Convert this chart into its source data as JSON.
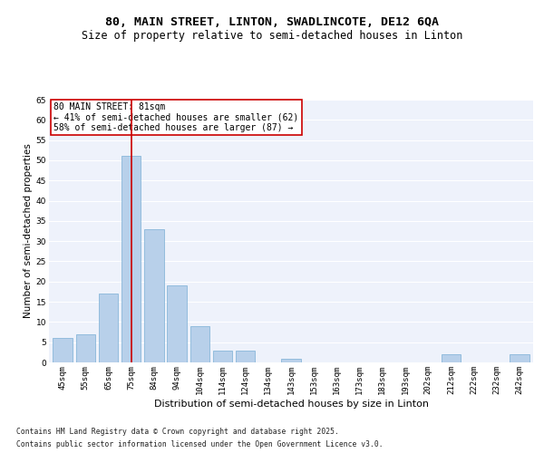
{
  "title1": "80, MAIN STREET, LINTON, SWADLINCOTE, DE12 6QA",
  "title2": "Size of property relative to semi-detached houses in Linton",
  "xlabel": "Distribution of semi-detached houses by size in Linton",
  "ylabel": "Number of semi-detached properties",
  "categories": [
    "45sqm",
    "55sqm",
    "65sqm",
    "75sqm",
    "84sqm",
    "94sqm",
    "104sqm",
    "114sqm",
    "124sqm",
    "134sqm",
    "143sqm",
    "153sqm",
    "163sqm",
    "173sqm",
    "183sqm",
    "193sqm",
    "202sqm",
    "212sqm",
    "222sqm",
    "232sqm",
    "242sqm"
  ],
  "values": [
    6,
    7,
    17,
    51,
    33,
    19,
    9,
    3,
    3,
    0,
    1,
    0,
    0,
    0,
    0,
    0,
    0,
    2,
    0,
    0,
    2
  ],
  "bar_color": "#b8d0ea",
  "bar_edge_color": "#7aafd4",
  "vline_x_index": 3,
  "vline_color": "#cc0000",
  "annotation_text": "80 MAIN STREET: 81sqm\n← 41% of semi-detached houses are smaller (62)\n58% of semi-detached houses are larger (87) →",
  "annotation_box_color": "#ffffff",
  "annotation_box_edge": "#cc0000",
  "footnote1": "Contains HM Land Registry data © Crown copyright and database right 2025.",
  "footnote2": "Contains public sector information licensed under the Open Government Licence v3.0.",
  "ylim": [
    0,
    65
  ],
  "yticks": [
    0,
    5,
    10,
    15,
    20,
    25,
    30,
    35,
    40,
    45,
    50,
    55,
    60,
    65
  ],
  "bg_color": "#eef2fb",
  "grid_color": "#ffffff",
  "title_fontsize": 9.5,
  "subtitle_fontsize": 8.5,
  "tick_fontsize": 6.5,
  "axis_label_fontsize": 8,
  "ylabel_fontsize": 7.5
}
